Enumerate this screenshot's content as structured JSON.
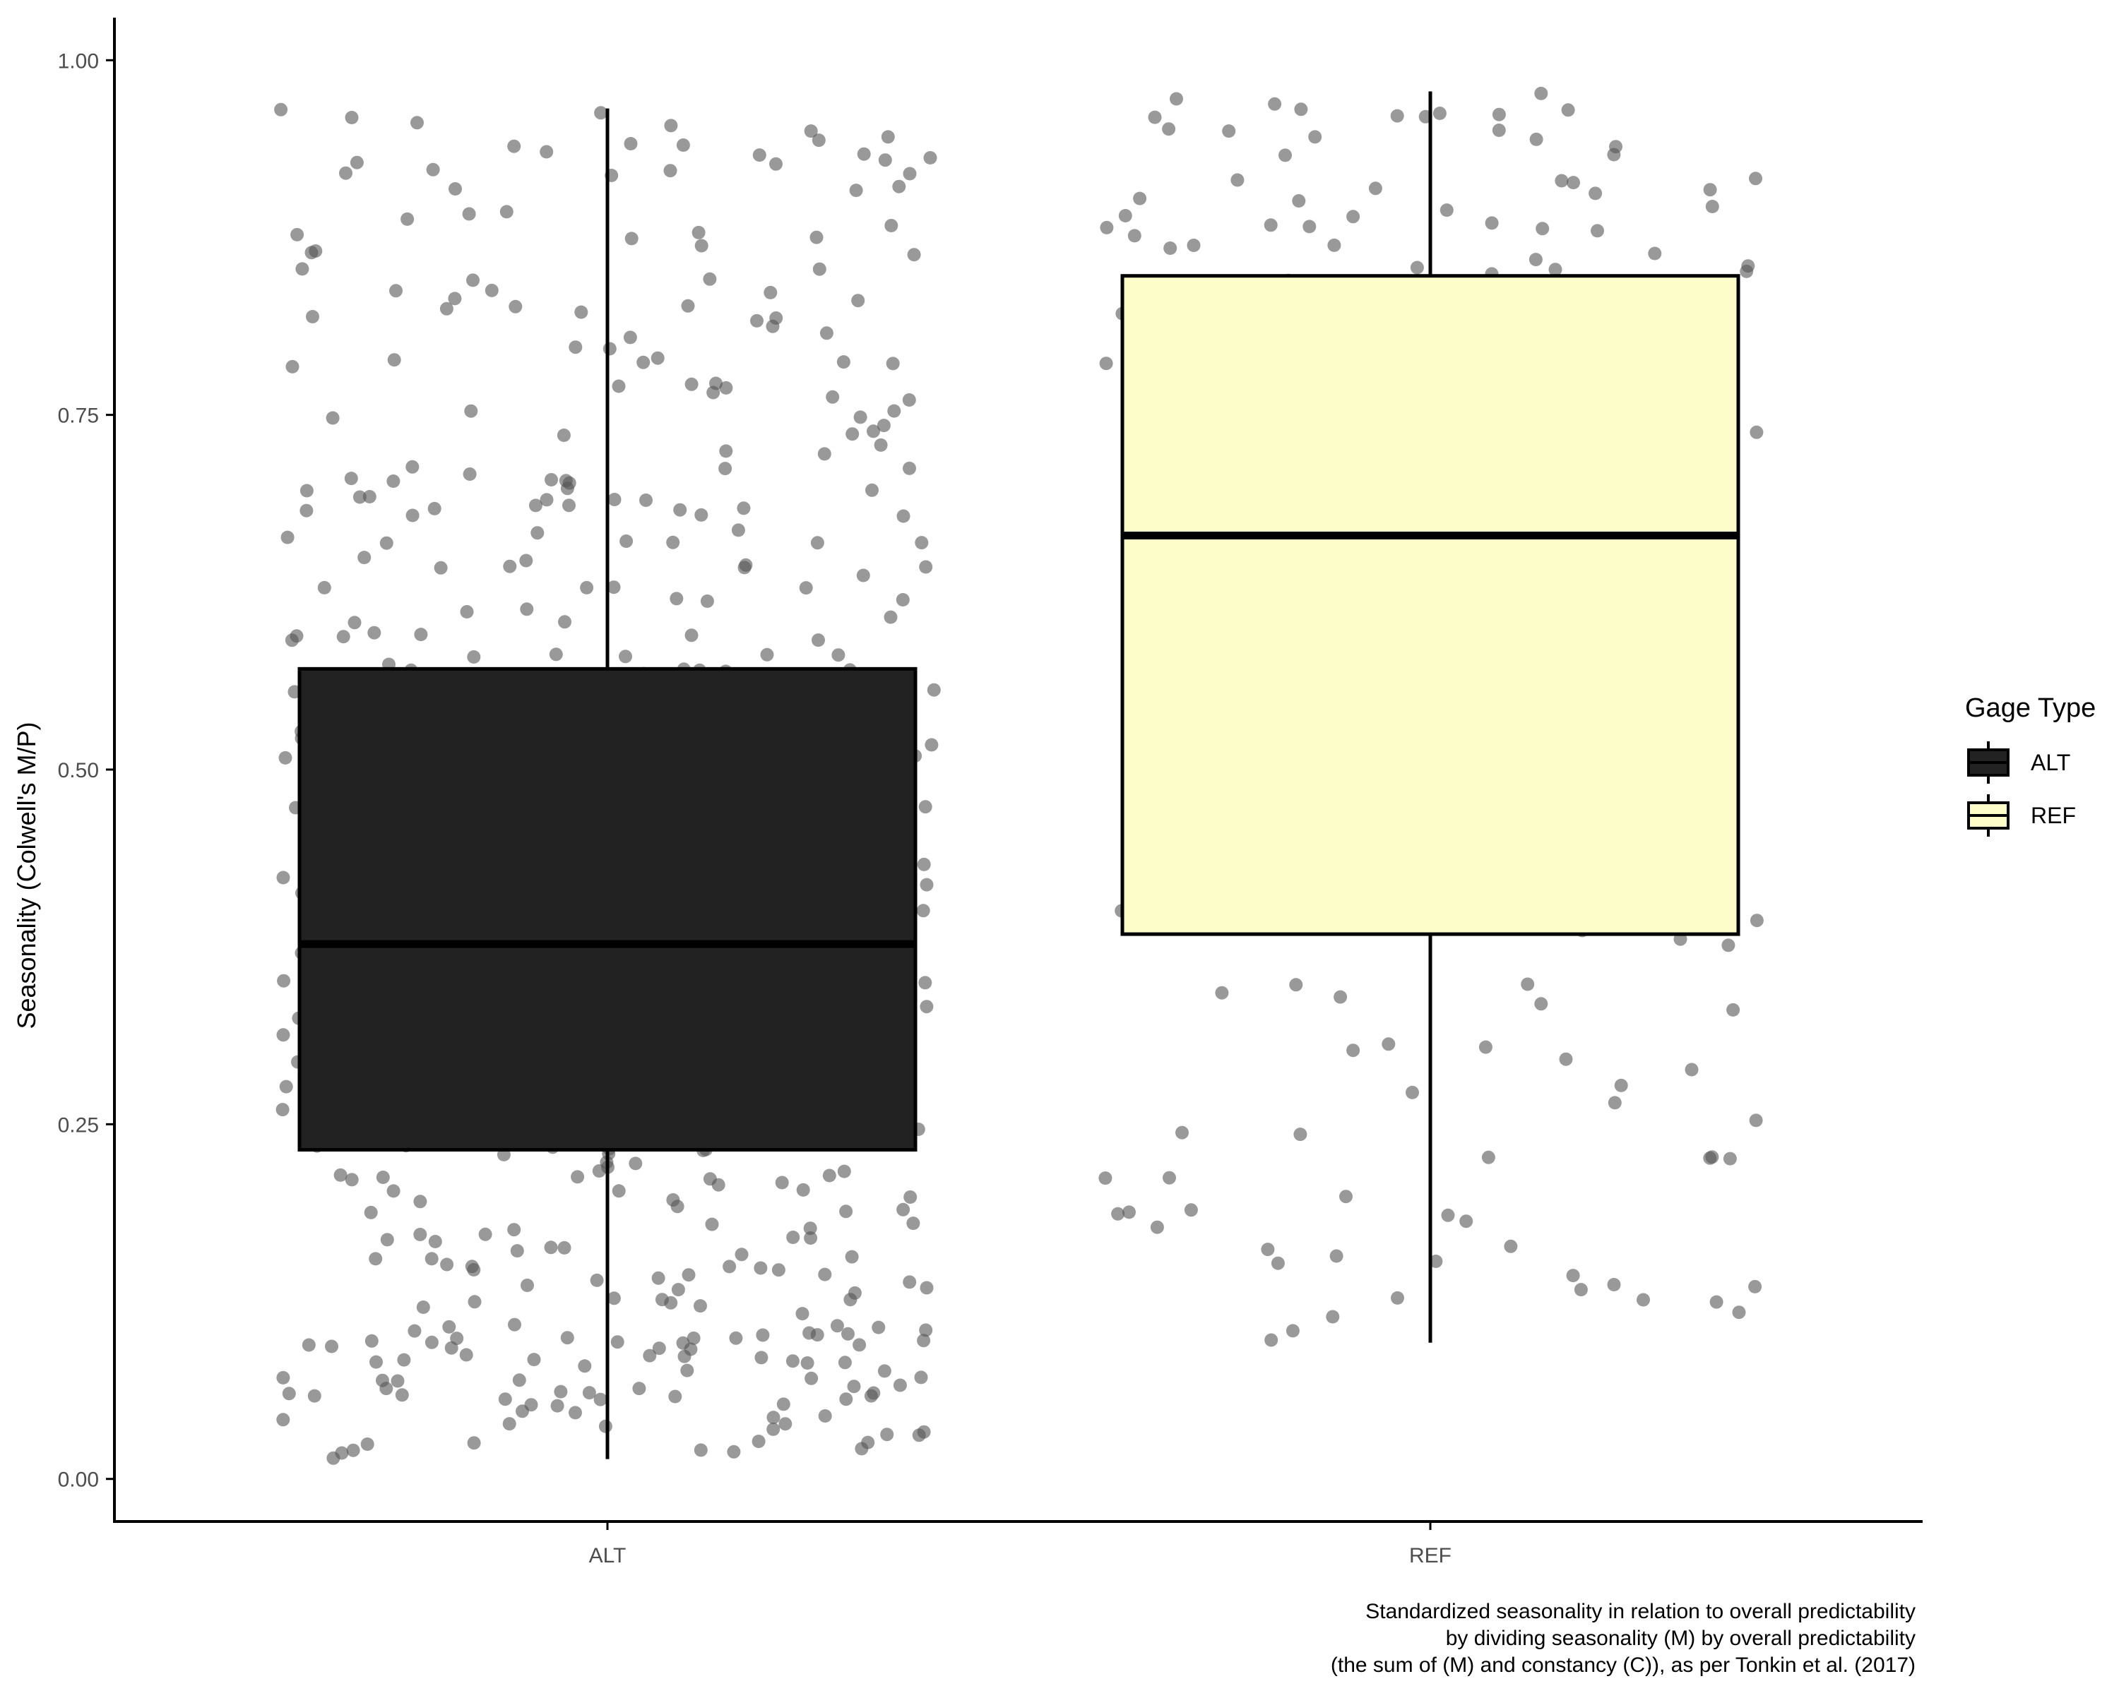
{
  "chart_data": {
    "type": "boxplot",
    "ylabel": "Seasonality (Colwell's M/P)",
    "ylim": [
      -0.03,
      1.03
    ],
    "y_ticks": [
      {
        "value": 0.0,
        "label": "0.00"
      },
      {
        "value": 0.25,
        "label": "0.25"
      },
      {
        "value": 0.5,
        "label": "0.50"
      },
      {
        "value": 0.75,
        "label": "0.75"
      },
      {
        "value": 1.0,
        "label": "1.00"
      }
    ],
    "grid": false,
    "legend": {
      "title": "Gage Type",
      "placement": "right",
      "entries": [
        {
          "label": "ALT",
          "color": "#222222"
        },
        {
          "label": "REF",
          "color": "#fdfdc9"
        }
      ]
    },
    "caption": [
      "Standardized seasonality in relation to overall predictability",
      "by dividing seasonality (M) by overall predictability",
      "(the sum of (M) and constancy (C)), as per Tonkin et al. (2017)"
    ],
    "point_color": "#555555",
    "groups": [
      {
        "category": "ALT",
        "fill": "#222222",
        "whisker_low": 0.014,
        "q1": 0.232,
        "median": 0.377,
        "q3": 0.571,
        "whisker_high": 0.966,
        "n_points_approx": 600
      },
      {
        "category": "REF",
        "fill": "#fdfdc9",
        "whisker_low": 0.096,
        "q1": 0.384,
        "median": 0.665,
        "q3": 0.848,
        "whisker_high": 0.978,
        "n_points_approx": 190
      }
    ]
  }
}
